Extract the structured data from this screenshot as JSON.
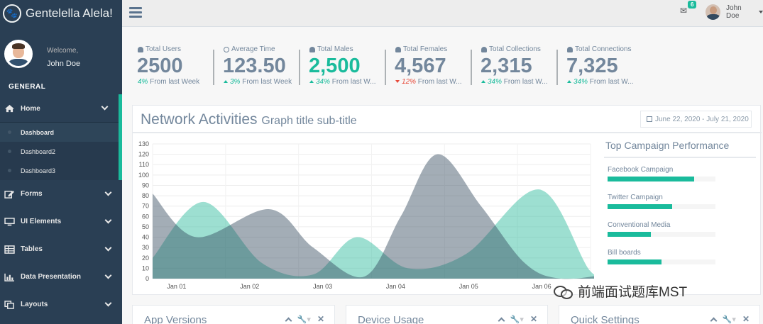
{
  "brand": {
    "title": "Gentelella Alela!",
    "icon": "paw-icon"
  },
  "profile": {
    "welcome": "Welcome,",
    "name": "John Doe"
  },
  "sidebar": {
    "section": "GENERAL",
    "items": [
      {
        "label": "Home",
        "icon": "home-icon"
      },
      {
        "label": "Forms",
        "icon": "edit-icon"
      },
      {
        "label": "UI Elements",
        "icon": "desktop-icon"
      },
      {
        "label": "Tables",
        "icon": "table-icon"
      },
      {
        "label": "Data Presentation",
        "icon": "bar-chart-icon"
      },
      {
        "label": "Layouts",
        "icon": "clone-icon"
      }
    ],
    "submenu": [
      "Dashboard",
      "Dashboard2",
      "Dashboard3"
    ]
  },
  "topnav": {
    "mail_count": "6",
    "user": "John Doe"
  },
  "stats": [
    {
      "label": "Total Users",
      "count": "2500",
      "pct": "4%",
      "foot": "From last Week",
      "trend": "none",
      "highlight": false
    },
    {
      "label": "Average Time",
      "count": "123.50",
      "pct": "3%",
      "foot": "From last Week",
      "trend": "up",
      "highlight": false
    },
    {
      "label": "Total Males",
      "count": "2,500",
      "pct": "34%",
      "foot": "From last W...",
      "trend": "up",
      "highlight": true
    },
    {
      "label": "Total Females",
      "count": "4,567",
      "pct": "12%",
      "foot": "From last W...",
      "trend": "down",
      "highlight": false
    },
    {
      "label": "Total Collections",
      "count": "2,315",
      "pct": "34%",
      "foot": "From last W...",
      "trend": "up",
      "highlight": false
    },
    {
      "label": "Total Connections",
      "count": "7,325",
      "pct": "34%",
      "foot": "From last W...",
      "trend": "up",
      "highlight": false
    }
  ],
  "network": {
    "title": "Network Activities",
    "subtitle": "Graph title sub-title",
    "date_range": "June 22, 2020 - July 21, 2020"
  },
  "chart_data": {
    "type": "area",
    "title": "Network Activities",
    "x": [
      "Jan 01",
      "Jan 02",
      "Jan 03",
      "Jan 04",
      "Jan 05",
      "Jan 06"
    ],
    "yticks": [
      0,
      10,
      20,
      30,
      40,
      50,
      60,
      70,
      80,
      90,
      100,
      110,
      120,
      130
    ],
    "ylim": [
      0,
      130
    ],
    "series": [
      {
        "name": "series-1",
        "color": "#26b99a",
        "points": [
          [
            0,
            20
          ],
          [
            0.7,
            74
          ],
          [
            1.5,
            15
          ],
          [
            2.2,
            4
          ],
          [
            2.8,
            40
          ],
          [
            3.5,
            10
          ],
          [
            4.3,
            24
          ],
          [
            5.3,
            86
          ],
          [
            6.0,
            7
          ],
          [
            6.3,
            10
          ]
        ]
      },
      {
        "name": "series-2",
        "color": "#34495e",
        "points": [
          [
            0,
            82
          ],
          [
            0.6,
            40
          ],
          [
            1.6,
            67
          ],
          [
            2.2,
            30
          ],
          [
            2.9,
            2
          ],
          [
            3.4,
            60
          ],
          [
            3.9,
            120
          ],
          [
            4.5,
            70
          ],
          [
            5.1,
            15
          ],
          [
            5.6,
            0
          ],
          [
            6.3,
            5
          ]
        ]
      }
    ]
  },
  "campaign": {
    "title": "Top Campaign Performance",
    "items": [
      {
        "name": "Facebook Campaign",
        "value": 80
      },
      {
        "name": "Twitter Campaign",
        "value": 60
      },
      {
        "name": "Conventional Media",
        "value": 40
      },
      {
        "name": "Bill boards",
        "value": 50
      }
    ]
  },
  "bottom_panels": [
    "App Versions",
    "Device Usage",
    "Quick Settings"
  ],
  "watermark": "前端面试题库MST"
}
